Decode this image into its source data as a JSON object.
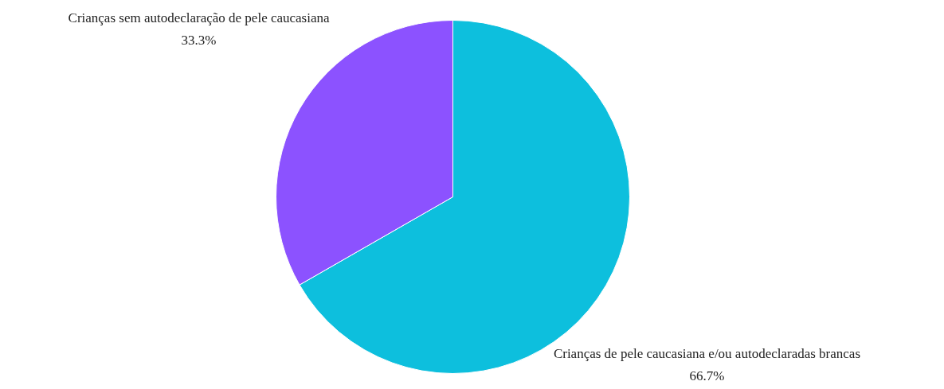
{
  "chart_data": {
    "type": "pie",
    "categories": [
      "Crianças de pele caucasiana e/ou autodeclaradas brancas",
      "Crianças sem autodeclaração de pele caucasiana"
    ],
    "values": [
      66.7,
      33.3
    ],
    "colors": [
      "#0dbfdd",
      "#8c52ff"
    ],
    "value_labels": [
      "66.7%",
      "33.3%"
    ]
  }
}
